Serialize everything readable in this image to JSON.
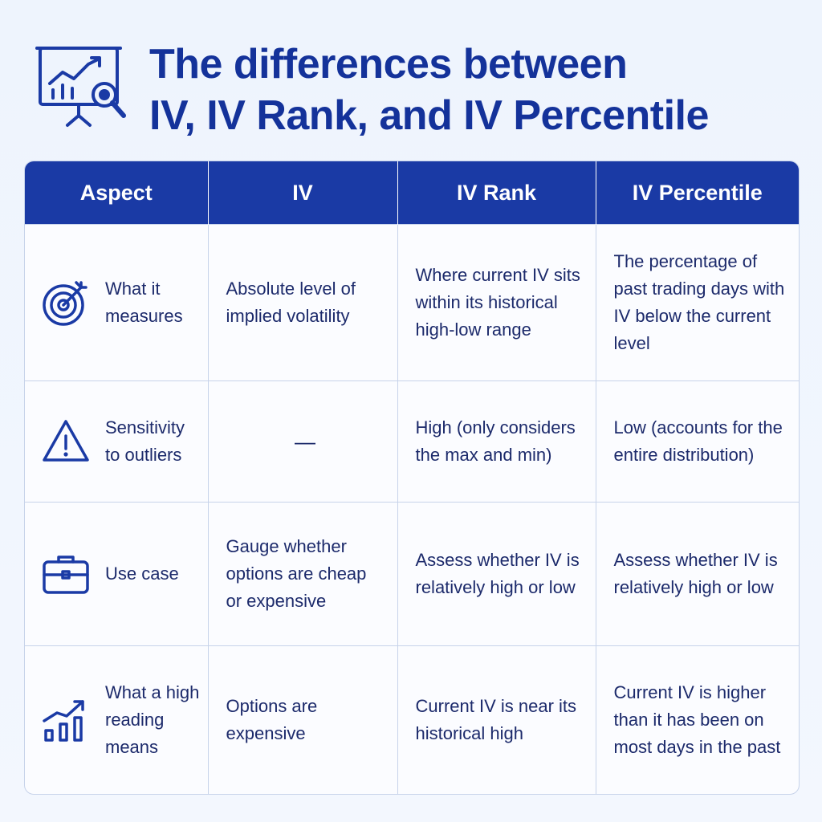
{
  "header": {
    "icon": "chart-presentation-magnifier-icon",
    "title_line1": "The differences between",
    "title_line2": "IV, IV Rank, and IV Percentile",
    "accent_color": "#14329a"
  },
  "table": {
    "header_color": "#1a3aa5",
    "columns": [
      "Aspect",
      "IV",
      "IV Rank",
      "IV Percentile"
    ],
    "rows": [
      {
        "icon": "target-icon",
        "aspect": "What it measures",
        "iv": "Absolute level of implied volatility",
        "iv_rank": "Where current IV sits within its historical high-low range",
        "iv_percentile": "The percentage of past trading days with IV below the current level"
      },
      {
        "icon": "warning-icon",
        "aspect": "Sensitivity to outliers",
        "iv": "—",
        "iv_rank": "High (only considers the max and min)",
        "iv_percentile": "Low (accounts for the entire distribution)"
      },
      {
        "icon": "briefcase-icon",
        "aspect": "Use case",
        "iv": "Gauge whether options are cheap or expensive",
        "iv_rank": "Assess whether IV is relatively high or low",
        "iv_percentile": "Assess whether IV is relatively high or low"
      },
      {
        "icon": "rising-bars-icon",
        "aspect": "What a high reading means",
        "iv": "Options are expensive",
        "iv_rank": "Current IV is near its historical high",
        "iv_percentile": "Current IV is higher than it has been on most days in the past"
      }
    ]
  }
}
